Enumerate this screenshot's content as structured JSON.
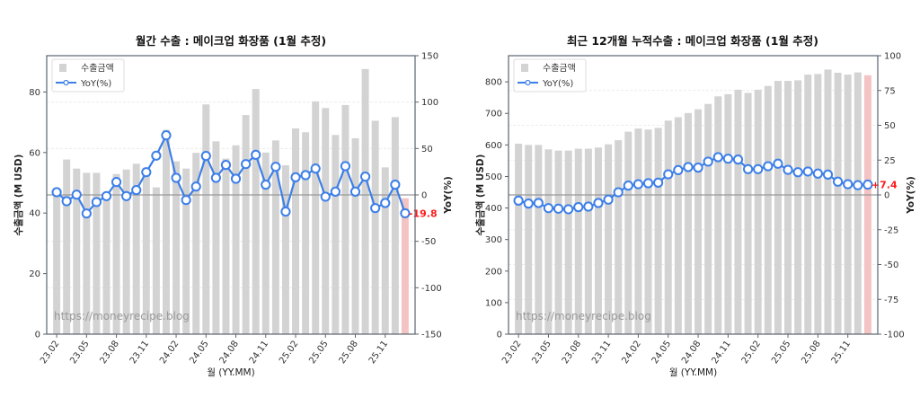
{
  "chart_data": [
    {
      "type": "bar+line",
      "title": "월간 수출 : 메이크업 화장품 (1월 추정)",
      "xlabel": "월 (YY.MM)",
      "ylabel_left": "수출금액 (M USD)",
      "ylabel_right": "YoY(%)",
      "ylim_left": [
        0,
        92
      ],
      "ylim_right": [
        -150,
        150
      ],
      "yticks_left": [
        0,
        20,
        40,
        60,
        80
      ],
      "yticks_right": [
        -150,
        -100,
        -50,
        0,
        50,
        100,
        150
      ],
      "categories": [
        "23.02",
        "23.03",
        "23.04",
        "23.05",
        "23.06",
        "23.07",
        "23.08",
        "23.09",
        "23.10",
        "23.11",
        "23.12",
        "24.01",
        "24.02",
        "24.03",
        "24.04",
        "24.05",
        "24.06",
        "24.07",
        "24.08",
        "24.09",
        "24.10",
        "24.11",
        "24.12",
        "25.01",
        "25.02",
        "25.03",
        "25.04",
        "25.05",
        "25.06",
        "25.07",
        "25.08",
        "25.09",
        "25.10",
        "25.11",
        "25.12",
        "26.01"
      ],
      "xtick_labels": [
        "23.02",
        "23.05",
        "23.08",
        "23.11",
        "24.02",
        "24.05",
        "24.08",
        "24.11",
        "25.02",
        "25.05",
        "25.08",
        "25.11"
      ],
      "series": [
        {
          "name": "수출금액",
          "kind": "bar",
          "color": "#d3d3d3",
          "highlight_last_color": "#f4c4c4",
          "values": [
            46,
            57.7,
            54.7,
            53.3,
            53.3,
            46,
            52.9,
            54.4,
            56.3,
            55,
            48.5,
            67.5,
            57.1,
            54.7,
            59.9,
            75.9,
            63.7,
            58,
            62.4,
            72.4,
            81,
            60,
            64,
            55.8,
            68,
            66.7,
            76.9,
            74.7,
            65.8,
            75.7,
            64.7,
            87.6,
            70.5,
            55.1,
            71.7,
            44.9
          ]
        },
        {
          "name": "YoY(%)",
          "kind": "line",
          "axis": "right",
          "color": "#3d7fe8",
          "values": [
            2.9,
            -6.8,
            0.3,
            -20,
            -7.7,
            -1.3,
            13.9,
            -1.3,
            5.2,
            24.5,
            42.3,
            64.2,
            18.4,
            -5.5,
            9,
            42,
            18.4,
            32.3,
            17.4,
            33.2,
            43.2,
            11,
            30.3,
            -18,
            19,
            21.3,
            28.4,
            -1.9,
            3.5,
            31,
            3.5,
            19.7,
            -14.2,
            -8.7,
            11,
            -19.8
          ]
        }
      ],
      "last_label": "-19.8",
      "legend": "top-left",
      "watermark": "https://moneyrecipe.blog",
      "grid": "horizontal dashed, faint"
    },
    {
      "type": "bar+line",
      "title": "최근 12개월 누적수출 : 메이크업 화장품 (1월 추정)",
      "xlabel": "월 (YY.MM)",
      "ylabel_left": "수출금액 (M USD)",
      "ylabel_right": "YoY(%)",
      "ylim_left": [
        0,
        883
      ],
      "ylim_right": [
        -100,
        100
      ],
      "yticks_left": [
        0,
        100,
        200,
        300,
        400,
        500,
        600,
        700,
        800
      ],
      "yticks_right": [
        -100,
        -75,
        -50,
        -25,
        0,
        25,
        50,
        75,
        100
      ],
      "categories": [
        "23.02",
        "23.03",
        "23.04",
        "23.05",
        "23.06",
        "23.07",
        "23.08",
        "23.09",
        "23.10",
        "23.11",
        "23.12",
        "24.01",
        "24.02",
        "24.03",
        "24.04",
        "24.05",
        "24.06",
        "24.07",
        "24.08",
        "24.09",
        "24.10",
        "24.11",
        "24.12",
        "25.01",
        "25.02",
        "25.03",
        "25.04",
        "25.05",
        "25.06",
        "25.07",
        "25.08",
        "25.09",
        "25.10",
        "25.11",
        "25.12",
        "26.01"
      ],
      "xtick_labels": [
        "23.02",
        "23.05",
        "23.08",
        "23.11",
        "24.02",
        "24.05",
        "24.08",
        "24.11",
        "25.02",
        "25.05",
        "25.08",
        "25.11"
      ],
      "series": [
        {
          "name": "수출금액",
          "kind": "bar",
          "color": "#d3d3d3",
          "highlight_last_color": "#f4c4c4",
          "values": [
            604,
            600,
            600,
            586,
            582,
            582,
            588,
            588,
            592,
            602,
            615,
            642,
            652,
            649,
            654,
            677,
            688,
            701,
            713,
            730,
            754,
            761,
            775,
            765,
            775,
            787,
            803,
            803,
            805,
            823,
            825,
            839,
            829,
            823,
            830,
            821
          ]
        },
        {
          "name": "YoY(%)",
          "kind": "line",
          "axis": "right",
          "color": "#3d7fe8",
          "values": [
            -4.1,
            -6.2,
            -5.8,
            -9.5,
            -9.9,
            -10.3,
            -8.8,
            -8.4,
            -5.8,
            -3.4,
            1.9,
            6.7,
            7.7,
            8.4,
            8.8,
            14.8,
            17.8,
            20,
            19.6,
            23.9,
            27.1,
            26,
            25.4,
            18.5,
            18.5,
            20.6,
            22.4,
            18,
            16.3,
            16.8,
            15.3,
            14.6,
            9.5,
            7.7,
            7,
            7.4
          ]
        }
      ],
      "last_label": "+7.4",
      "legend": "top-left",
      "watermark": "https://moneyrecipe.blog",
      "grid": "horizontal dashed, faint"
    }
  ]
}
